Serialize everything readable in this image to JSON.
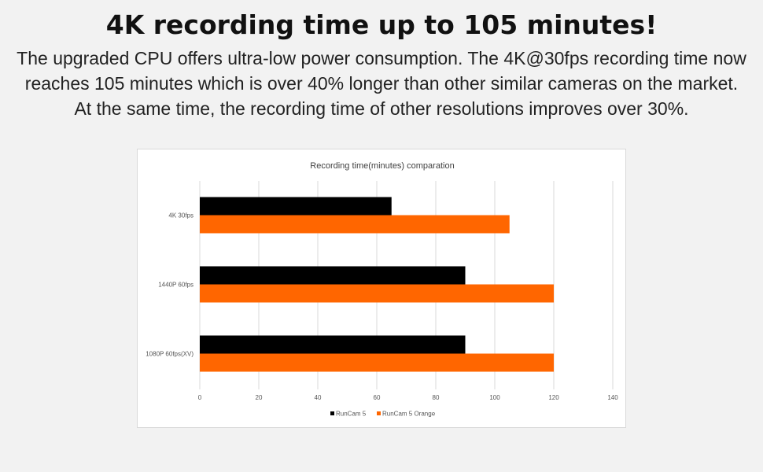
{
  "header": {
    "title": "4K recording time up to 105 minutes!",
    "description_lines": [
      "The upgraded CPU offers ultra-low power consumption. The 4K@30fps recording time now",
      "reaches 105 minutes which is over 40% longer than other similar cameras on the market.",
      "At the same time, the recording time of other resolutions improves over 30%."
    ]
  },
  "colors": {
    "series_1": "#000000",
    "series_2": "#ff6600",
    "gridline": "#d9d9d9"
  },
  "chart_data": {
    "type": "bar",
    "orientation": "horizontal",
    "title": "Recording time(minutes) comparation",
    "xlabel": "",
    "ylabel": "",
    "categories": [
      "4K 30fps",
      "1440P 60fps",
      "1080P 60fps(XV)"
    ],
    "series": [
      {
        "name": "RunCam 5",
        "values": [
          65,
          90,
          90
        ],
        "color": "#000000"
      },
      {
        "name": "RunCam 5 Orange",
        "values": [
          105,
          120,
          120
        ],
        "color": "#ff6600"
      }
    ],
    "xlim": [
      0,
      140
    ],
    "x_ticks": [
      0,
      20,
      40,
      60,
      80,
      100,
      120,
      140
    ],
    "grid": true,
    "legend_position": "bottom"
  }
}
